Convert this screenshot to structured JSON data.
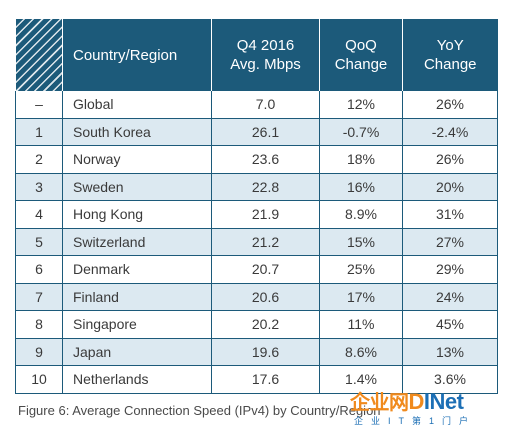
{
  "table": {
    "headers": {
      "country": "Country/Region",
      "speed": [
        "Q4 2016",
        "Avg. Mbps"
      ],
      "qoq": [
        "QoQ",
        "Change"
      ],
      "yoy": [
        "YoY",
        "Change"
      ]
    },
    "rows": [
      {
        "rank": "–",
        "country": "Global",
        "speed": "7.0",
        "qoq": "12%",
        "yoy": "26%"
      },
      {
        "rank": "1",
        "country": "South Korea",
        "speed": "26.1",
        "qoq": "-0.7%",
        "yoy": "-2.4%"
      },
      {
        "rank": "2",
        "country": "Norway",
        "speed": "23.6",
        "qoq": "18%",
        "yoy": "26%"
      },
      {
        "rank": "3",
        "country": "Sweden",
        "speed": "22.8",
        "qoq": "16%",
        "yoy": "20%"
      },
      {
        "rank": "4",
        "country": "Hong Kong",
        "speed": "21.9",
        "qoq": "8.9%",
        "yoy": "31%"
      },
      {
        "rank": "5",
        "country": "Switzerland",
        "speed": "21.2",
        "qoq": "15%",
        "yoy": "27%"
      },
      {
        "rank": "6",
        "country": "Denmark",
        "speed": "20.7",
        "qoq": "25%",
        "yoy": "29%"
      },
      {
        "rank": "7",
        "country": "Finland",
        "speed": "20.6",
        "qoq": "17%",
        "yoy": "24%"
      },
      {
        "rank": "8",
        "country": "Singapore",
        "speed": "20.2",
        "qoq": "11%",
        "yoy": "45%"
      },
      {
        "rank": "9",
        "country": "Japan",
        "speed": "19.6",
        "qoq": "8.6%",
        "yoy": "13%"
      },
      {
        "rank": "10",
        "country": "Netherlands",
        "speed": "17.6",
        "qoq": "1.4%",
        "yoy": "3.6%"
      }
    ]
  },
  "caption": "Figure 6: Average Connection Speed (IPv4) by Country/Region",
  "watermark": {
    "cn": "企业网",
    "di": "D",
    "net": "INet",
    "sub": "企业IT第1门户"
  },
  "colors": {
    "header_bg": "#1c5a7a",
    "alt_row_bg": "#dce9f1",
    "watermark_orange": "#f08a1d",
    "watermark_blue": "#1c6fb5"
  }
}
